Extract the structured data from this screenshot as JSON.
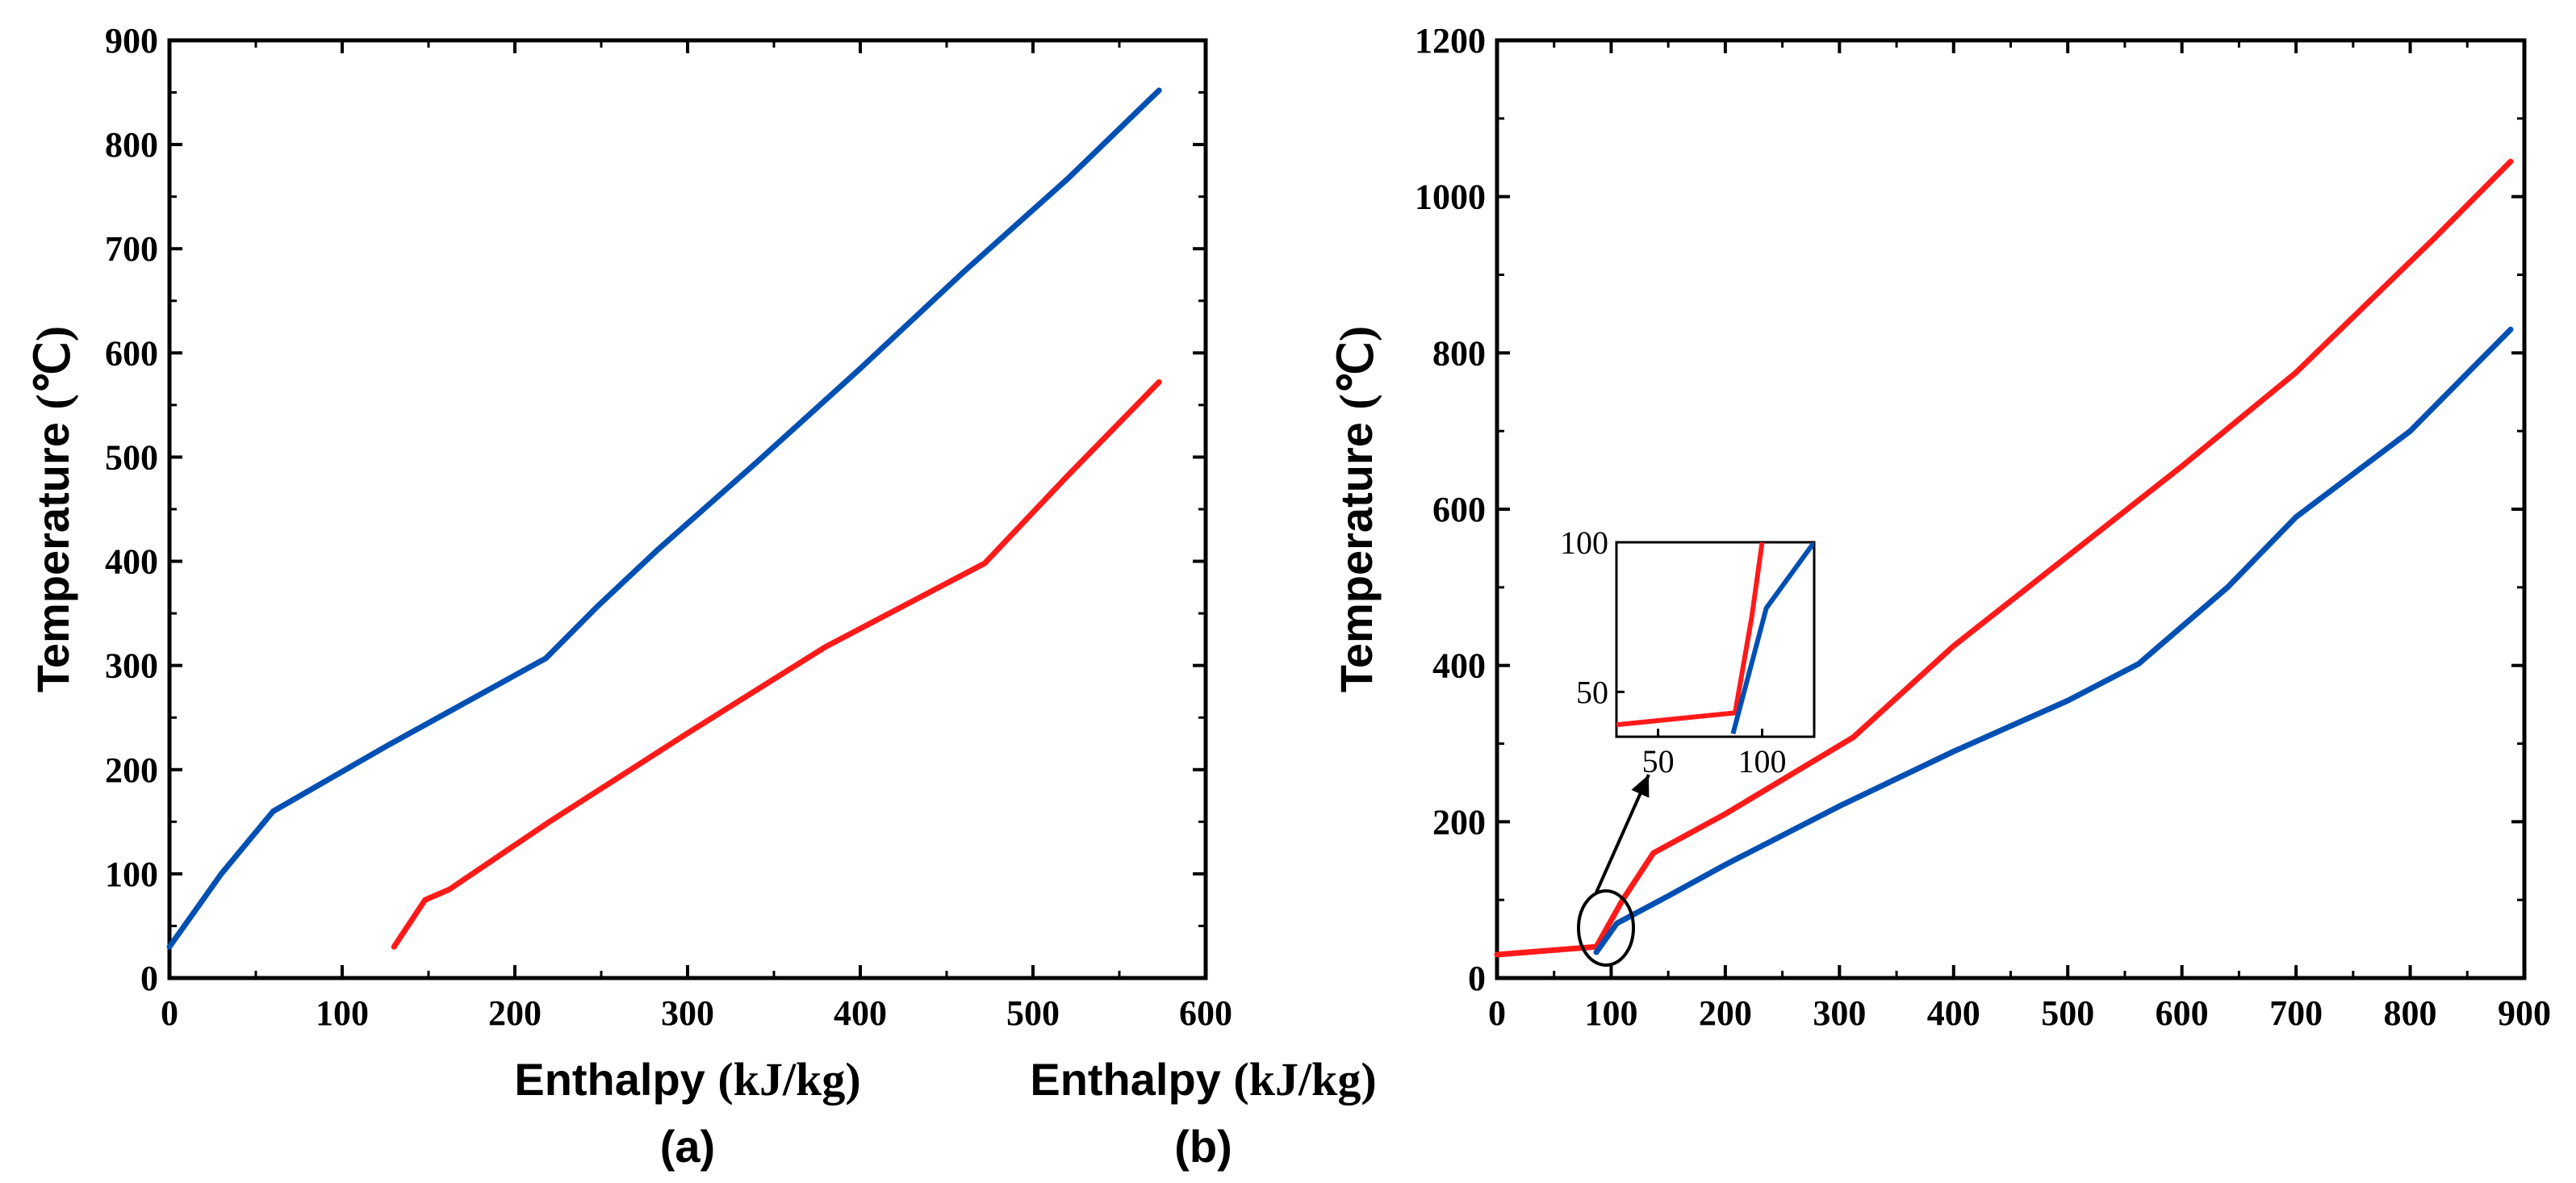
{
  "chart_data": [
    {
      "type": "line",
      "panel_label": "(a)",
      "xlabel": "Enthalpy",
      "xunit": "(kJ/kg)",
      "ylabel": "Temperature",
      "yunit": "(℃)",
      "xlim": [
        0,
        600
      ],
      "ylim": [
        0,
        900
      ],
      "xticks": [
        0,
        100,
        200,
        300,
        400,
        500,
        600
      ],
      "yticks": [
        0,
        100,
        200,
        300,
        400,
        500,
        600,
        700,
        800,
        900
      ],
      "grid": false,
      "series": [
        {
          "name": "blue",
          "color": "#0050b4",
          "x": [
            0,
            30,
            60,
            125,
            218,
            248,
            282,
            340,
            400,
            460,
            520,
            573
          ],
          "y": [
            30,
            100,
            160,
            222,
            307,
            357,
            410,
            495,
            585,
            678,
            767,
            852
          ]
        },
        {
          "name": "red",
          "color": "#ff1a1a",
          "x": [
            130,
            148,
            162,
            220,
            300,
            380,
            472,
            520,
            573
          ],
          "y": [
            30,
            75,
            85,
            150,
            235,
            318,
            398,
            482,
            572
          ]
        }
      ]
    },
    {
      "type": "line",
      "panel_label": "(b)",
      "xlabel": "Enthalpy",
      "xunit": "(kJ/kg)",
      "ylabel": "Temperature",
      "yunit": "(℃)",
      "xlim": [
        0,
        900
      ],
      "ylim": [
        0,
        1200
      ],
      "xticks": [
        0,
        100,
        200,
        300,
        400,
        500,
        600,
        700,
        800,
        900
      ],
      "yticks": [
        0,
        200,
        400,
        600,
        800,
        1000,
        1200
      ],
      "grid": false,
      "series": [
        {
          "name": "red",
          "color": "#ff1a1a",
          "x": [
            0,
            87,
            110,
            137,
            200,
            312,
            400,
            500,
            600,
            700,
            820,
            888
          ],
          "y": [
            30,
            40,
            100,
            160,
            210,
            308,
            425,
            540,
            655,
            775,
            945,
            1045
          ]
        },
        {
          "name": "blue",
          "color": "#0050b4",
          "x": [
            87,
            105,
            150,
            200,
            300,
            400,
            500,
            562,
            640,
            700,
            800,
            888
          ],
          "y": [
            33,
            70,
            105,
            145,
            220,
            290,
            355,
            402,
            500,
            590,
            700,
            830
          ]
        }
      ],
      "inset": {
        "xlim": [
          30,
          125
        ],
        "ylim": [
          35,
          100
        ],
        "xticks": [
          50,
          100
        ],
        "yticks": [
          50,
          100
        ],
        "series": [
          {
            "name": "red",
            "color": "#ff1a1a",
            "x": [
              30,
              87,
              95,
              100
            ],
            "y": [
              39,
              43,
              75,
              100
            ]
          },
          {
            "name": "blue",
            "color": "#0050b4",
            "x": [
              86,
              102,
              125
            ],
            "y": [
              36,
              78,
              100
            ]
          }
        ]
      }
    }
  ]
}
